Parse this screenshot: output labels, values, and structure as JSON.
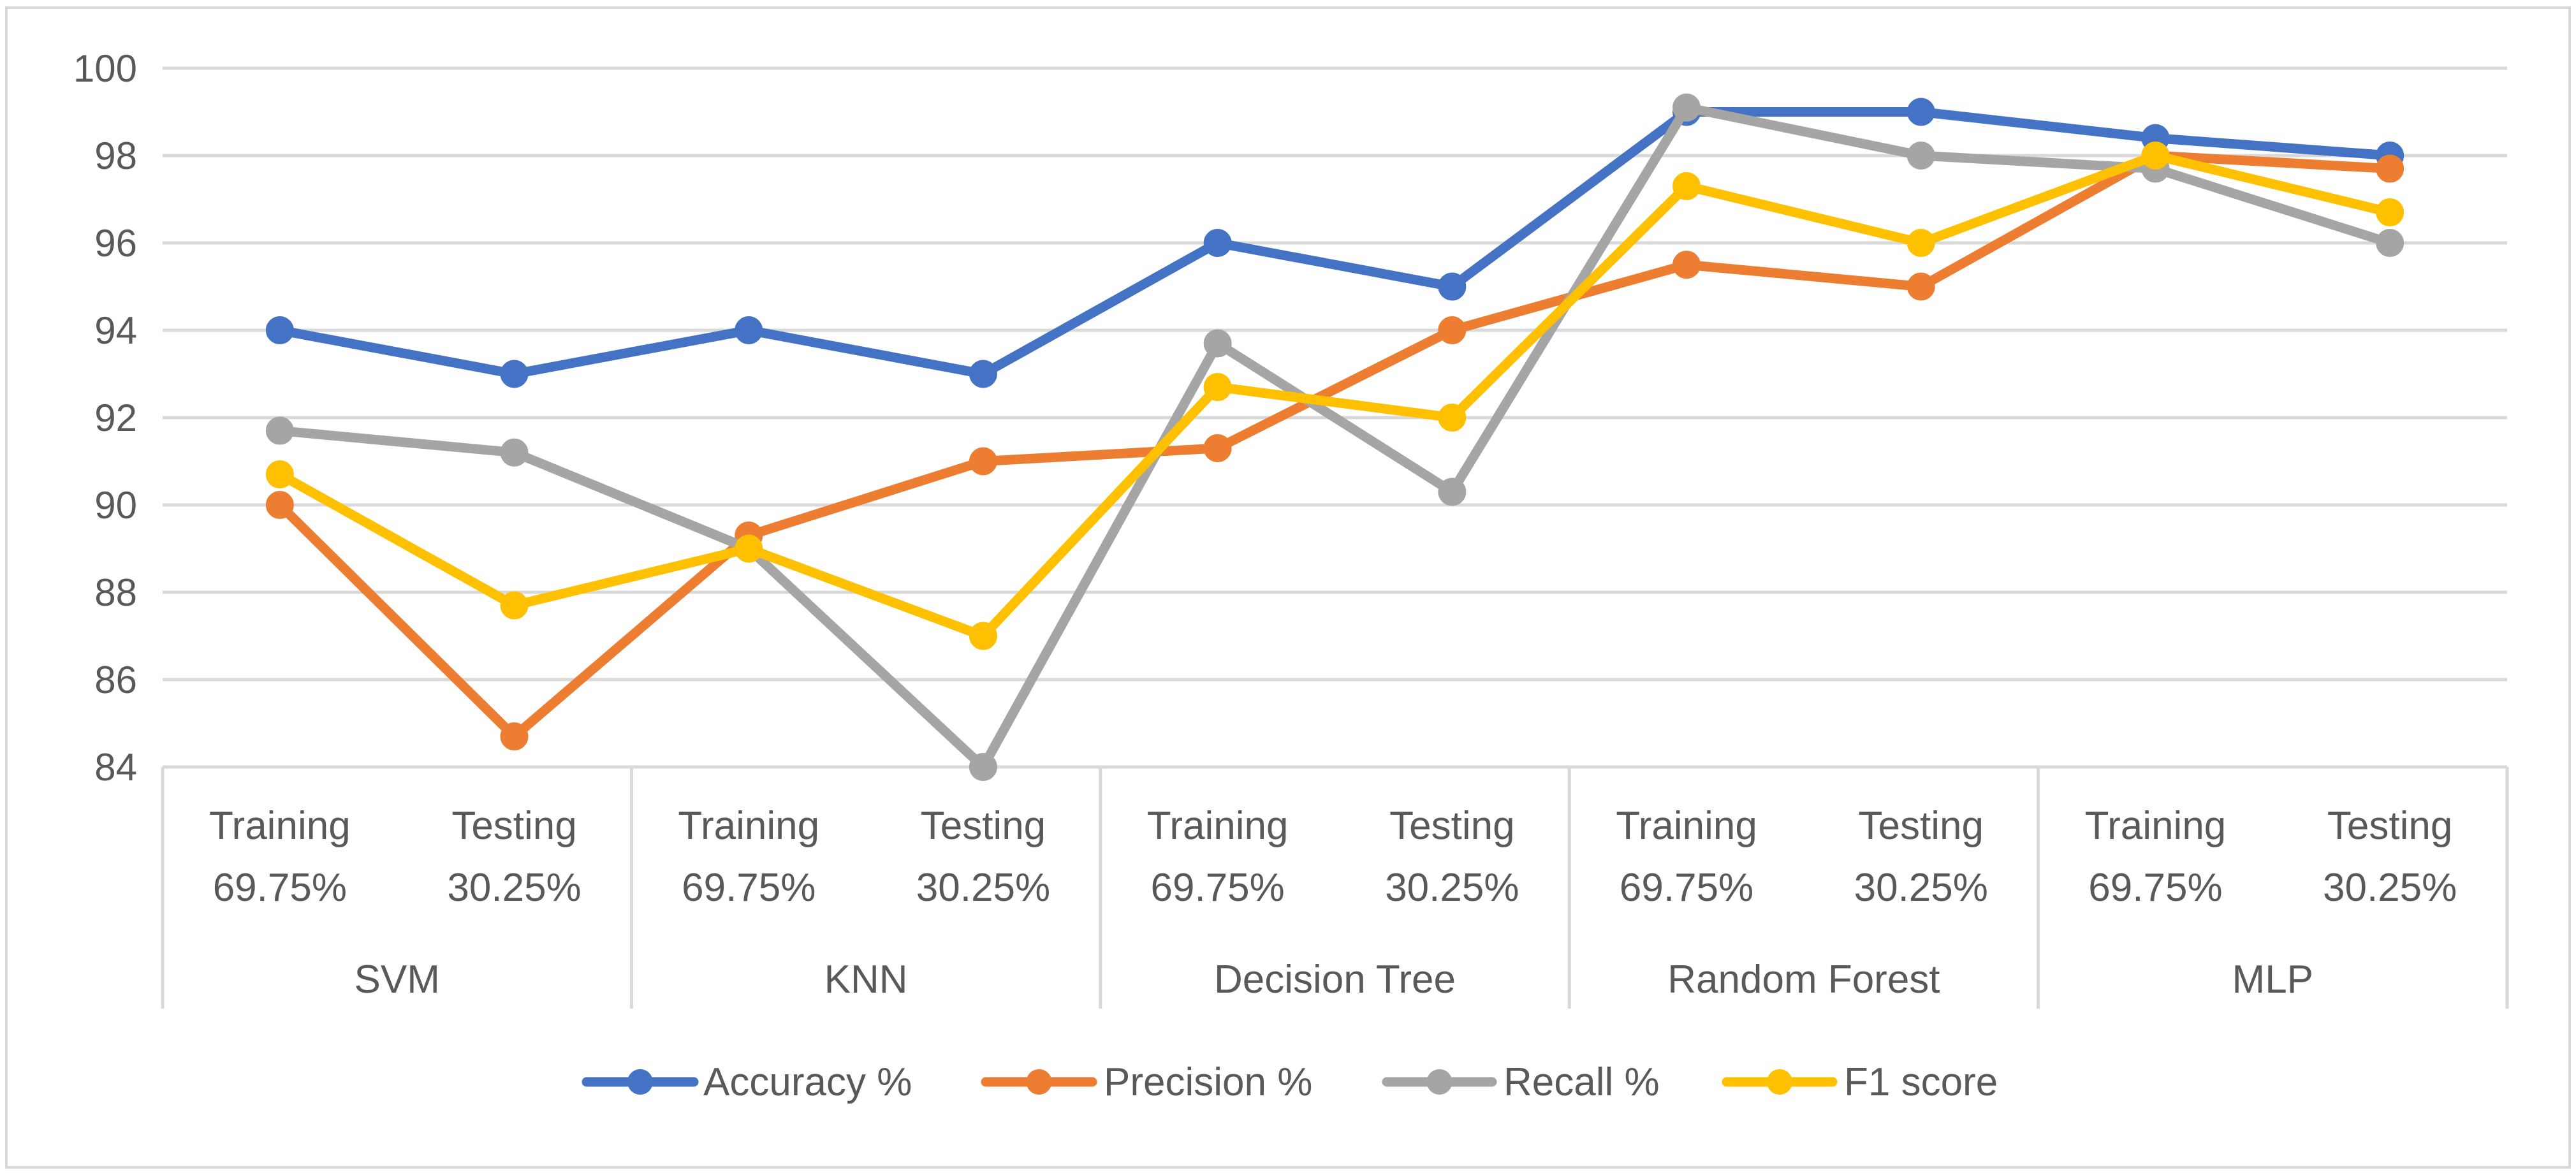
{
  "chart_data": {
    "type": "line",
    "title": "",
    "xlabel": "",
    "ylabel": "",
    "ylim": [
      84,
      100
    ],
    "y_ticks": [
      "84",
      "86",
      "88",
      "90",
      "92",
      "94",
      "96",
      "98",
      "100"
    ],
    "grid": true,
    "legend_position": "bottom",
    "groups": [
      {
        "name": "SVM",
        "subcategories": [
          {
            "line1": "Training",
            "line2": "69.75%"
          },
          {
            "line1": "Testing",
            "line2": "30.25%"
          }
        ]
      },
      {
        "name": "KNN",
        "subcategories": [
          {
            "line1": "Training",
            "line2": "69.75%"
          },
          {
            "line1": "Testing",
            "line2": "30.25%"
          }
        ]
      },
      {
        "name": "Decision Tree",
        "subcategories": [
          {
            "line1": "Training",
            "line2": "69.75%"
          },
          {
            "line1": "Testing",
            "line2": "30.25%"
          }
        ]
      },
      {
        "name": "Random Forest",
        "subcategories": [
          {
            "line1": "Training",
            "line2": "69.75%"
          },
          {
            "line1": "Testing",
            "line2": "30.25%"
          }
        ]
      },
      {
        "name": "MLP",
        "subcategories": [
          {
            "line1": "Training",
            "line2": "69.75%"
          },
          {
            "line1": "Testing",
            "line2": "30.25%"
          }
        ]
      }
    ],
    "series": [
      {
        "name": "Accuracy %",
        "color": "#4472C4",
        "values": [
          94,
          93,
          94,
          93,
          96,
          95,
          99,
          99,
          98.4,
          98
        ]
      },
      {
        "name": "Precision %",
        "color": "#ED7D31",
        "values": [
          90,
          84.7,
          89.3,
          91,
          91.3,
          94,
          95.5,
          95,
          98,
          97.7
        ]
      },
      {
        "name": "Recall %",
        "color": "#A5A5A5",
        "values": [
          91.7,
          91.2,
          89,
          84,
          93.7,
          90.3,
          99.1,
          98,
          97.7,
          96
        ]
      },
      {
        "name": "F1 score",
        "color": "#FFC000",
        "values": [
          90.7,
          87.7,
          89,
          87,
          92.7,
          92,
          97.3,
          96,
          98,
          96.7
        ]
      }
    ]
  }
}
